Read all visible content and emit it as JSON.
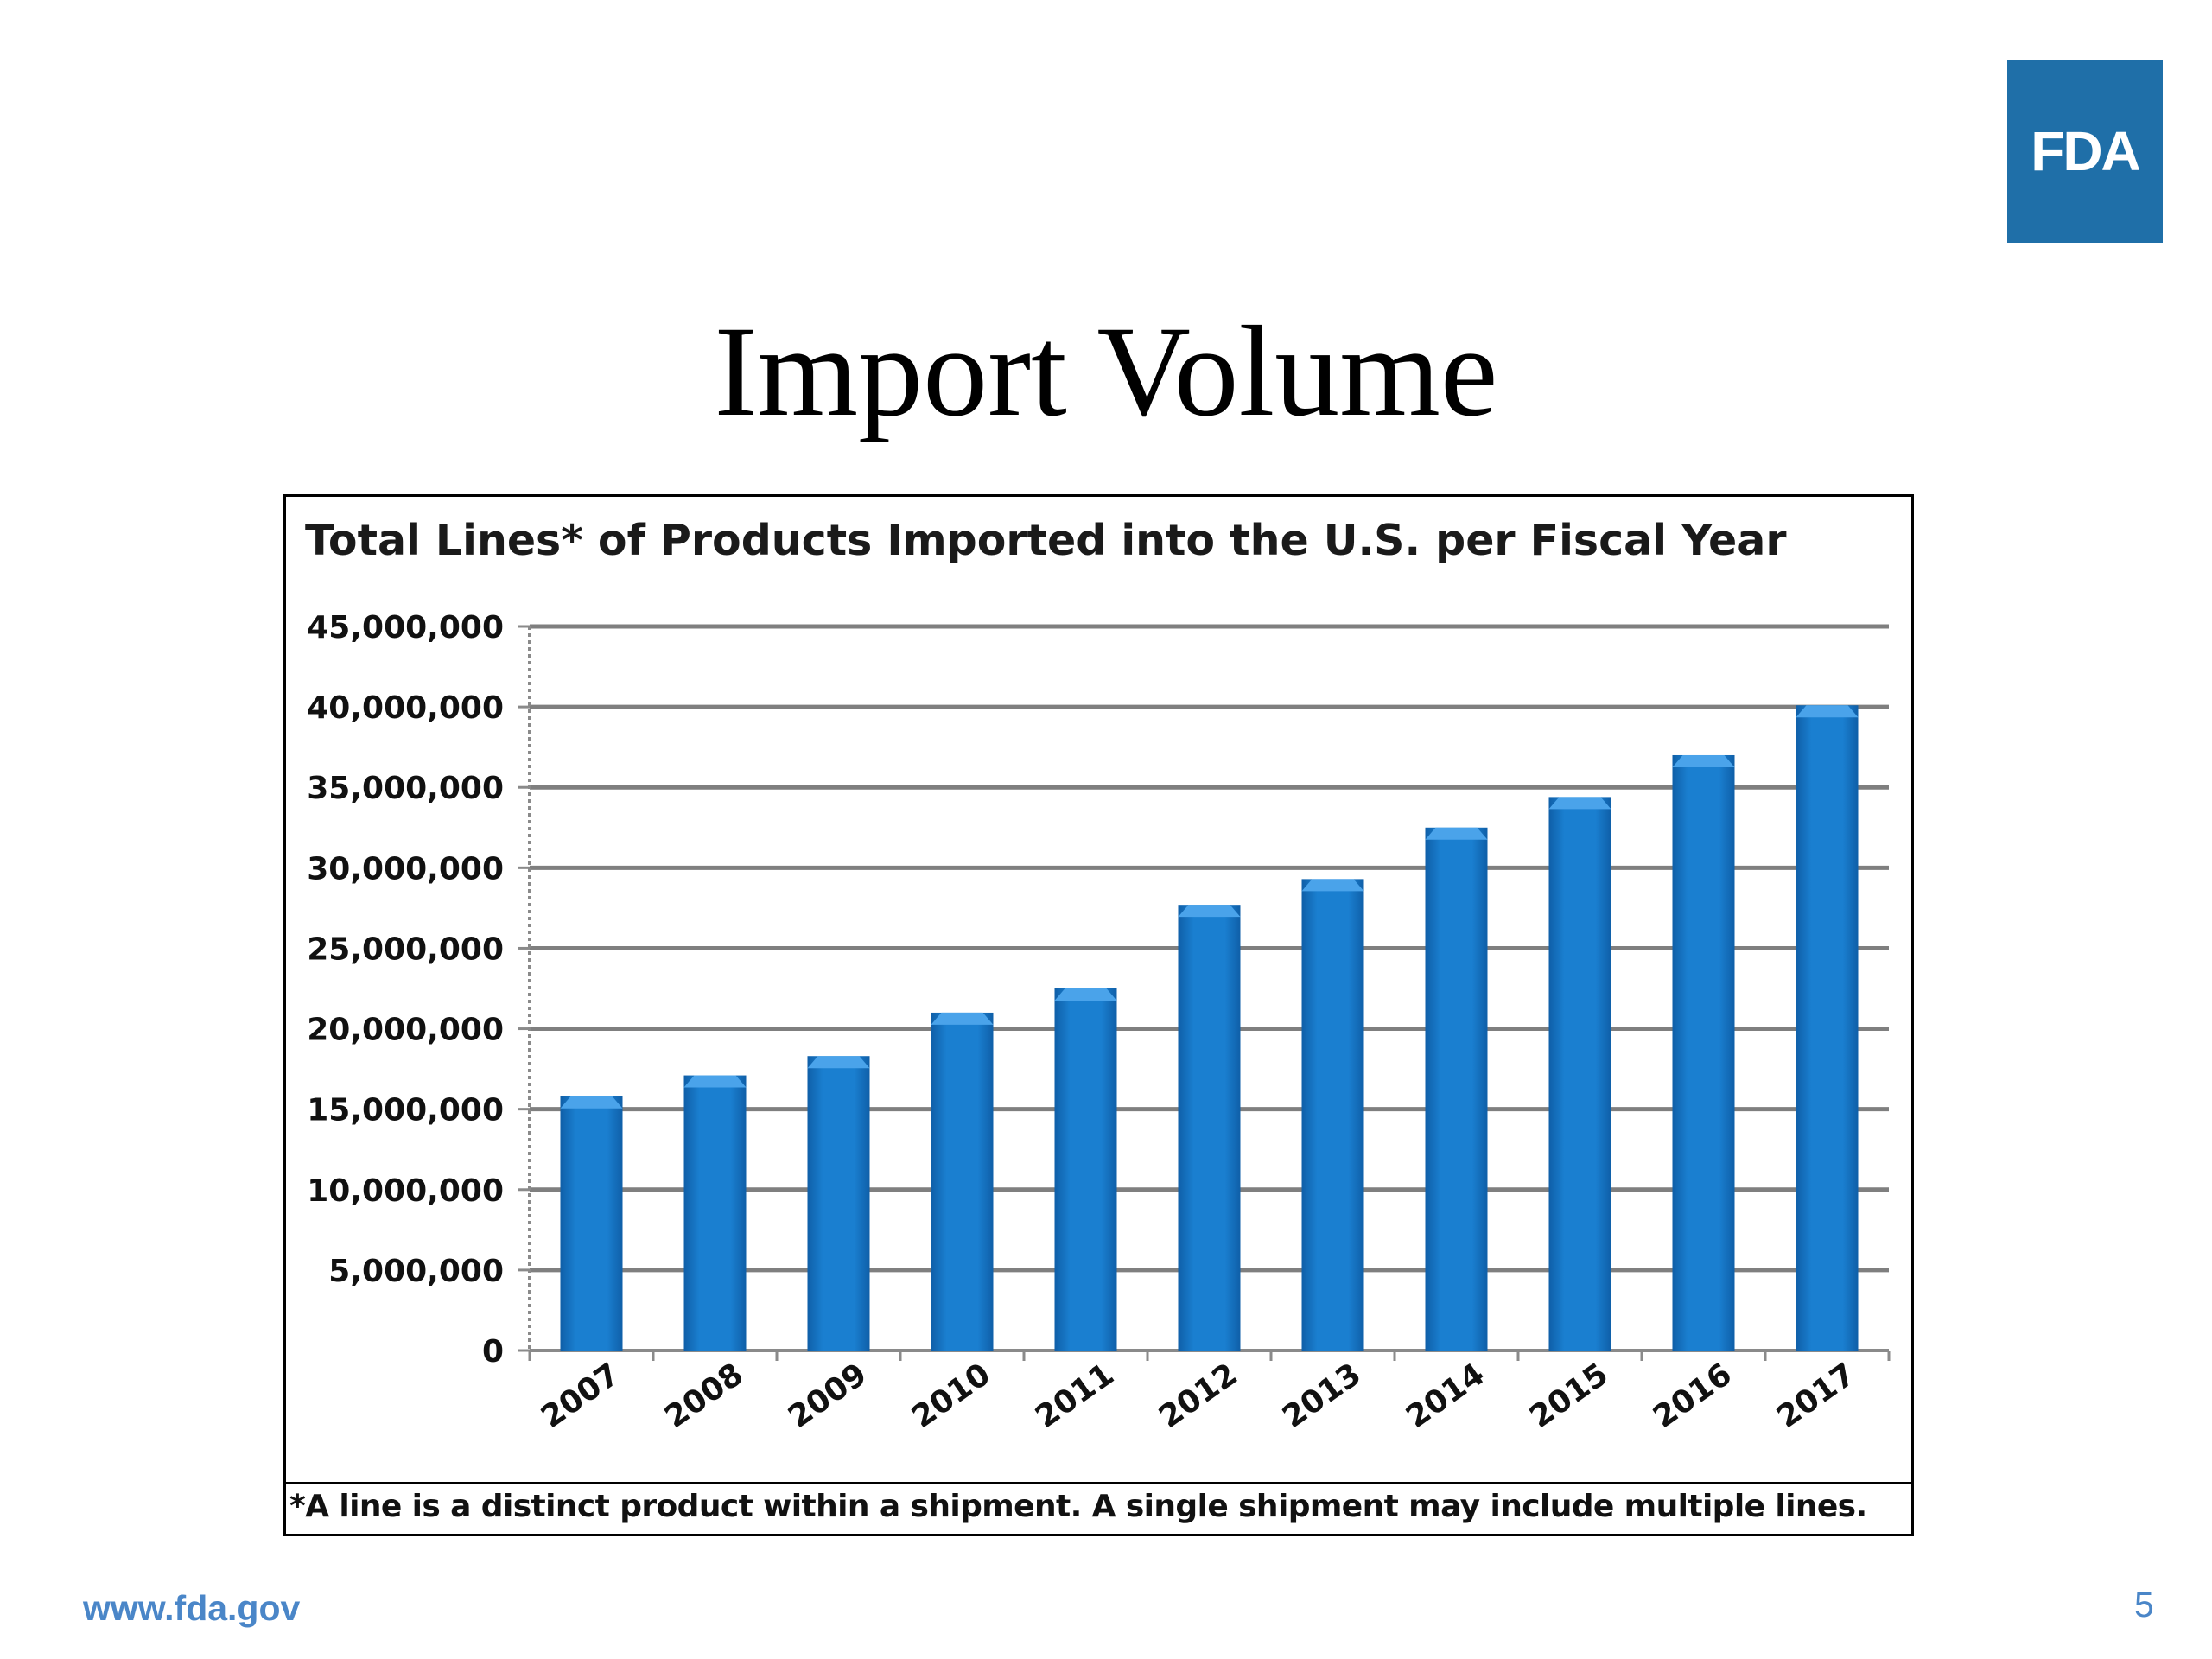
{
  "slide": {
    "logo_text": "FDA",
    "title": "Import Volume",
    "url": "www.fda.gov",
    "page_number": "5"
  },
  "colors": {
    "logo_bg": "#1f6fa8",
    "bar_fill": "#1a7fd0",
    "bar_dark": "#0f5fa8",
    "bar_top": "#4aa3ea",
    "gridline": "#7f7f7f",
    "footer_text": "#4a86c8"
  },
  "chart_data": {
    "type": "bar",
    "title": "Total Lines* of Products Imported into the U.S. per Fiscal Year",
    "footnote": "*A line is a distinct product within a shipment. A single shipment may include multiple lines.",
    "categories": [
      "2007",
      "2008",
      "2009",
      "2010",
      "2011",
      "2012",
      "2013",
      "2014",
      "2015",
      "2016",
      "2017"
    ],
    "values": [
      15800000,
      17100000,
      18300000,
      21000000,
      22500000,
      27700000,
      29300000,
      32500000,
      34400000,
      37000000,
      40100000
    ],
    "ylim": [
      0,
      45000000
    ],
    "yticks": [
      "0",
      "5,000,000",
      "10,000,000",
      "15,000,000",
      "20,000,000",
      "25,000,000",
      "30,000,000",
      "35,000,000",
      "40,000,000",
      "45,000,000"
    ],
    "ytick_values": [
      0,
      5000000,
      10000000,
      15000000,
      20000000,
      25000000,
      30000000,
      35000000,
      40000000,
      45000000
    ],
    "grid": true,
    "xlabel": "",
    "ylabel": ""
  }
}
